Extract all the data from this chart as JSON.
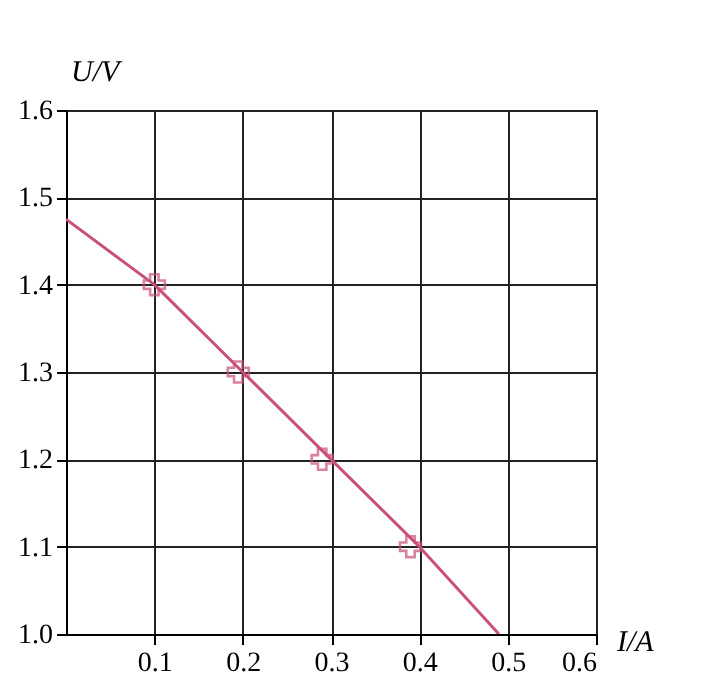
{
  "chart_data": {
    "type": "line",
    "xlabel": "I/A",
    "ylabel": "U/V",
    "xlim": [
      0,
      0.6
    ],
    "ylim": [
      1.0,
      1.6
    ],
    "xticks": [
      0.1,
      0.2,
      0.3,
      0.4,
      0.5,
      0.6
    ],
    "yticks": [
      {
        "value": 1.0,
        "label": "1.0"
      },
      1.1,
      1.2,
      1.3,
      1.4,
      1.5,
      1.6
    ],
    "grid": true,
    "series": [
      {
        "color": "#c8507a",
        "marker": "none",
        "x": [
          0,
          0.1,
          0.2,
          0.3,
          0.4,
          0.49
        ],
        "values": [
          1.475,
          1.4,
          1.3,
          1.2,
          1.1,
          1.0
        ]
      },
      {
        "type": "scatter",
        "color": "#c8507a",
        "marker": "cross",
        "x": [
          0.1,
          0.195,
          0.29,
          0.39
        ],
        "values": [
          1.4,
          1.3,
          1.2,
          1.1
        ]
      }
    ]
  }
}
